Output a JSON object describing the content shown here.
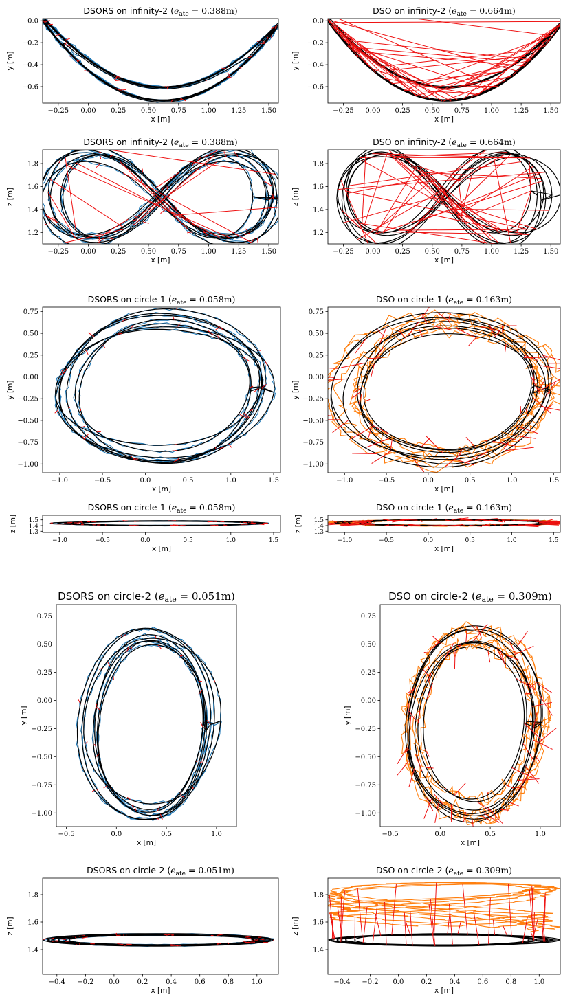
{
  "colors": {
    "ground_truth": "#000000",
    "dsors": "#1f77b4",
    "dso": "#ff7f0e",
    "error": "#ee1111"
  },
  "chart_data": [
    {
      "id": "p1",
      "type": "line",
      "title": "DSORS on infinity-2 (e_ate = 0.388m)",
      "title_prefix": "DSORS on infinity-2 (",
      "title_math": "e",
      "title_sub": "ate",
      "title_suffix": " = 0.388m)",
      "xlabel": "x [m]",
      "ylabel": "y [m]",
      "xlim": [
        -0.38,
        1.58
      ],
      "ylim": [
        -0.75,
        0.02
      ],
      "xticks": [
        -0.25,
        0,
        0.25,
        0.5,
        0.75,
        1,
        1.25,
        1.5
      ],
      "xticklabels": [
        "−0.25",
        "0.00",
        "0.25",
        "0.50",
        "0.75",
        "1.00",
        "1.25",
        "1.50"
      ],
      "yticks": [
        0,
        -0.2,
        -0.4,
        -0.6
      ],
      "yticklabels": [
        "0.0",
        "−0.2",
        "−0.4",
        "−0.6"
      ],
      "grid": false,
      "legend": "none",
      "shape": "parabola",
      "method": "dsors",
      "center": [
        0.58,
        0
      ],
      "rx": 0.9,
      "ry": 0,
      "parab": [
        0.62,
        -0.67
      ],
      "nloops": 7
    },
    {
      "id": "p2",
      "type": "line",
      "title": "DSO on infinity-2 (e_ate = 0.664m)",
      "title_prefix": "DSO on infinity-2 (",
      "title_math": "e",
      "title_sub": "ate",
      "title_suffix": " = 0.664m)",
      "xlabel": "x [m]",
      "ylabel": "y [m]",
      "xlim": [
        -0.38,
        1.58
      ],
      "ylim": [
        -0.75,
        0.02
      ],
      "xticks": [
        -0.25,
        0,
        0.25,
        0.5,
        0.75,
        1,
        1.25,
        1.5
      ],
      "xticklabels": [
        "−0.25",
        "0.00",
        "0.25",
        "0.50",
        "0.75",
        "1.00",
        "1.25",
        "1.50"
      ],
      "yticks": [
        0,
        -0.2,
        -0.4,
        -0.6
      ],
      "yticklabels": [
        "0.0",
        "−0.2",
        "−0.4",
        "−0.6"
      ],
      "grid": false,
      "legend": "none",
      "shape": "parabola",
      "method": "dso_red",
      "center": [
        0.58,
        0
      ],
      "rx": 0.9,
      "ry": 0,
      "parab": [
        0.62,
        -0.67
      ],
      "nloops": 7
    },
    {
      "id": "p3",
      "type": "line",
      "title": "DSORS on infinity-2 (e_ate = 0.388m)",
      "title_prefix": "DSORS on infinity-2 (",
      "title_math": "e",
      "title_sub": "ate",
      "title_suffix": " = 0.388m)",
      "xlabel": "x [m]",
      "ylabel": "z [m]",
      "xlim": [
        -0.38,
        1.58
      ],
      "ylim": [
        1.1,
        1.92
      ],
      "xticks": [
        -0.25,
        0,
        0.25,
        0.5,
        0.75,
        1,
        1.25,
        1.5
      ],
      "xticklabels": [
        "−0.25",
        "0.00",
        "0.25",
        "0.50",
        "0.75",
        "1.00",
        "1.25",
        "1.50"
      ],
      "yticks": [
        1.2,
        1.4,
        1.6,
        1.8
      ],
      "yticklabels": [
        "1.2",
        "1.4",
        "1.6",
        "1.8"
      ],
      "grid": false,
      "legend": "none",
      "shape": "lemniscate",
      "method": "dsors",
      "center": [
        0.6,
        1.52
      ],
      "rx": 0.88,
      "ry": 0.68,
      "nloops": 7
    },
    {
      "id": "p4",
      "type": "line",
      "title": "DSO on infinity-2 (e_ate = 0.664m)",
      "title_prefix": "DSO on infinity-2 (",
      "title_math": "e",
      "title_sub": "ate",
      "title_suffix": " = 0.664m)",
      "xlabel": "x [m]",
      "ylabel": "z [m]",
      "xlim": [
        -0.38,
        1.58
      ],
      "ylim": [
        1.1,
        1.92
      ],
      "xticks": [
        -0.25,
        0,
        0.25,
        0.5,
        0.75,
        1,
        1.25,
        1.5
      ],
      "xticklabels": [
        "−0.25",
        "0.00",
        "0.25",
        "0.50",
        "0.75",
        "1.00",
        "1.25",
        "1.50"
      ],
      "yticks": [
        1.2,
        1.4,
        1.6,
        1.8
      ],
      "yticklabels": [
        "1.2",
        "1.4",
        "1.6",
        "1.8"
      ],
      "grid": false,
      "legend": "none",
      "shape": "lemniscate",
      "method": "dso_red",
      "center": [
        0.6,
        1.52
      ],
      "rx": 0.88,
      "ry": 0.68,
      "nloops": 7
    },
    {
      "id": "p5",
      "type": "line",
      "title": "DSORS on circle-1 (e_ate = 0.058m)",
      "title_prefix": "DSORS on circle-1 (",
      "title_math": "e",
      "title_sub": "ate",
      "title_suffix": " = 0.058m)",
      "xlabel": "x [m]",
      "ylabel": "y [m]",
      "xlim": [
        -1.2,
        1.58
      ],
      "ylim": [
        -1.1,
        0.8
      ],
      "xticks": [
        -1,
        -0.5,
        0,
        0.5,
        1,
        1.5
      ],
      "xticklabels": [
        "−1.0",
        "−0.5",
        "0.0",
        "0.5",
        "1.0",
        "1.5"
      ],
      "yticks": [
        0.75,
        0.5,
        0.25,
        0,
        -0.25,
        -0.5,
        -0.75,
        -1
      ],
      "yticklabels": [
        "0.75",
        "0.50",
        "0.25",
        "0.00",
        "−0.25",
        "−0.50",
        "−0.75",
        "−1.00"
      ],
      "grid": false,
      "legend": "none",
      "shape": "ellipse",
      "method": "dsors",
      "center": [
        0.2,
        -0.14
      ],
      "rx": 1.15,
      "ry": 0.78,
      "nloops": 7
    },
    {
      "id": "p6",
      "type": "line",
      "title": "DSO on circle-1 (e_ate = 0.163m)",
      "title_prefix": "DSO on circle-1 (",
      "title_math": "e",
      "title_sub": "ate",
      "title_suffix": " = 0.163m)",
      "xlabel": "x [m]",
      "ylabel": "y [m]",
      "xlim": [
        -1.2,
        1.58
      ],
      "ylim": [
        -1.1,
        0.8
      ],
      "xticks": [
        -1,
        -0.5,
        0,
        0.5,
        1,
        1.5
      ],
      "xticklabels": [
        "−1.0",
        "−0.5",
        "0.0",
        "0.5",
        "1.0",
        "1.5"
      ],
      "yticks": [
        0.75,
        0.5,
        0.25,
        0,
        -0.25,
        -0.5,
        -0.75,
        -1
      ],
      "yticklabels": [
        "0.75",
        "0.50",
        "0.25",
        "0.00",
        "−0.25",
        "−0.50",
        "−0.75",
        "−1.00"
      ],
      "grid": false,
      "legend": "none",
      "shape": "ellipse",
      "method": "dso",
      "center": [
        0.2,
        -0.14
      ],
      "rx": 1.15,
      "ry": 0.78,
      "nloops": 7
    },
    {
      "id": "p7",
      "type": "line",
      "title": "DSORS on circle-1 (e_ate = 0.058m)",
      "title_prefix": "DSORS on circle-1 (",
      "title_math": "e",
      "title_sub": "ate",
      "title_suffix": " = 0.058m)",
      "xlabel": "x [m]",
      "ylabel": "z [m]",
      "xlim": [
        -1.2,
        1.58
      ],
      "ylim": [
        1.28,
        1.58
      ],
      "xticks": [
        -1,
        -0.5,
        0,
        0.5,
        1,
        1.5
      ],
      "xticklabels": [
        "−1.0",
        "−0.5",
        "0.0",
        "0.5",
        "1.0",
        "1.5"
      ],
      "yticks": [
        1.5,
        1.4,
        1.3
      ],
      "yticklabels": [
        "1.5",
        "1.4",
        "1.3"
      ],
      "grid": false,
      "legend": "none",
      "shape": "flat",
      "method": "dsors",
      "center": [
        0.2,
        1.44
      ],
      "rx": 1.15,
      "ry": 0.05,
      "nloops": 9
    },
    {
      "id": "p8",
      "type": "line",
      "title": "DSO on circle-1 (e_ate = 0.163m)",
      "title_prefix": "DSO on circle-1 (",
      "title_math": "e",
      "title_sub": "ate",
      "title_suffix": " = 0.163m)",
      "xlabel": "x [m]",
      "ylabel": "z [m]",
      "xlim": [
        -1.2,
        1.58
      ],
      "ylim": [
        1.28,
        1.58
      ],
      "xticks": [
        -1,
        -0.5,
        0,
        0.5,
        1,
        1.5
      ],
      "xticklabels": [
        "−1.0",
        "−0.5",
        "0.0",
        "0.5",
        "1.0",
        "1.5"
      ],
      "yticks": [
        1.5,
        1.4,
        1.3
      ],
      "yticklabels": [
        "1.5",
        "1.4",
        "1.3"
      ],
      "grid": false,
      "legend": "none",
      "shape": "flat",
      "method": "dso",
      "center": [
        0.25,
        1.45
      ],
      "rx": 1.2,
      "ry": 0.06,
      "nloops": 9
    },
    {
      "id": "p9",
      "type": "line",
      "title": "DSORS on circle-2 (e_ate = 0.051m)",
      "title_prefix": "DSORS on circle-2 (",
      "title_math": "e",
      "title_sub": "ate",
      "title_suffix": " = 0.051m)",
      "xlabel": "x [m]",
      "ylabel": "y [m]",
      "xlim": [
        -0.6,
        1.2
      ],
      "ylim": [
        -1.12,
        0.85
      ],
      "xticks": [
        -0.5,
        0,
        0.5,
        1
      ],
      "xticklabels": [
        "−0.5",
        "0.0",
        "0.5",
        "1.0"
      ],
      "yticks": [
        0.75,
        0.5,
        0.25,
        0,
        -0.25,
        -0.5,
        -0.75,
        -1
      ],
      "yticklabels": [
        "0.75",
        "0.50",
        "0.25",
        "0.00",
        "−0.25",
        "−0.50",
        "−0.75",
        "−1.00"
      ],
      "grid": false,
      "legend": "none",
      "shape": "ellipse",
      "method": "dsors",
      "center": [
        0.33,
        -0.22
      ],
      "rx": 0.6,
      "ry": 0.76,
      "nloops": 7
    },
    {
      "id": "p10",
      "type": "line",
      "title": "DSO on circle-2 (e_ate = 0.309m)",
      "title_prefix": "DSO on circle-2 (",
      "title_math": "e",
      "title_sub": "ate",
      "title_suffix": " = 0.309m)",
      "xlabel": "x [m]",
      "ylabel": "y [m]",
      "xlim": [
        -0.6,
        1.2
      ],
      "ylim": [
        -1.12,
        0.85
      ],
      "xticks": [
        -0.5,
        0,
        0.5,
        1
      ],
      "xticklabels": [
        "−0.5",
        "0.0",
        "0.5",
        "1.0"
      ],
      "yticks": [
        0.75,
        0.5,
        0.25,
        0,
        -0.25,
        -0.5,
        -0.75,
        -1
      ],
      "yticklabels": [
        "0.75",
        "0.50",
        "0.25",
        "0.00",
        "−0.25",
        "−0.50",
        "−0.75",
        "−1.00"
      ],
      "grid": false,
      "legend": "none",
      "shape": "ellipse",
      "method": "dso",
      "center": [
        0.33,
        -0.22
      ],
      "rx": 0.6,
      "ry": 0.76,
      "nloops": 7
    },
    {
      "id": "p11",
      "type": "line",
      "title": "DSORS on circle-2 (e_ate = 0.051m)",
      "title_prefix": "DSORS on circle-2 (",
      "title_math": "e",
      "title_sub": "ate",
      "title_suffix": " = 0.051m)",
      "xlabel": "x [m]",
      "ylabel": "z [m]",
      "xlim": [
        -0.5,
        1.15
      ],
      "ylim": [
        1.22,
        1.92
      ],
      "xticks": [
        -0.4,
        -0.2,
        0,
        0.2,
        0.4,
        0.6,
        0.8,
        1
      ],
      "xticklabels": [
        "−0.4",
        "−0.2",
        "0.0",
        "0.2",
        "0.4",
        "0.6",
        "0.8",
        "1.0"
      ],
      "yticks": [
        1.8,
        1.6,
        1.4
      ],
      "yticklabels": [
        "1.8",
        "1.6",
        "1.4"
      ],
      "grid": false,
      "legend": "none",
      "shape": "flat",
      "method": "dsors",
      "center": [
        0.3,
        1.47
      ],
      "rx": 0.72,
      "ry": 0.05,
      "nloops": 9
    },
    {
      "id": "p12",
      "type": "line",
      "title": "DSO on circle-2 (e_ate = 0.309m)",
      "title_prefix": "DSO on circle-2 (",
      "title_math": "e",
      "title_sub": "ate",
      "title_suffix": " = 0.309m)",
      "xlabel": "x [m]",
      "ylabel": "z [m]",
      "xlim": [
        -0.5,
        1.15
      ],
      "ylim": [
        1.22,
        1.92
      ],
      "xticks": [
        -0.4,
        -0.2,
        0,
        0.2,
        0.4,
        0.6,
        0.8,
        1
      ],
      "xticklabels": [
        "−0.4",
        "−0.2",
        "0.0",
        "0.2",
        "0.4",
        "0.6",
        "0.8",
        "1.0"
      ],
      "yticks": [
        1.8,
        1.6,
        1.4
      ],
      "yticklabels": [
        "1.8",
        "1.6",
        "1.4"
      ],
      "grid": false,
      "legend": "none",
      "shape": "flat",
      "method": "dso_scatter",
      "center": [
        0.3,
        1.47
      ],
      "rx": 0.72,
      "ry": 0.05,
      "nloops": 9
    }
  ]
}
